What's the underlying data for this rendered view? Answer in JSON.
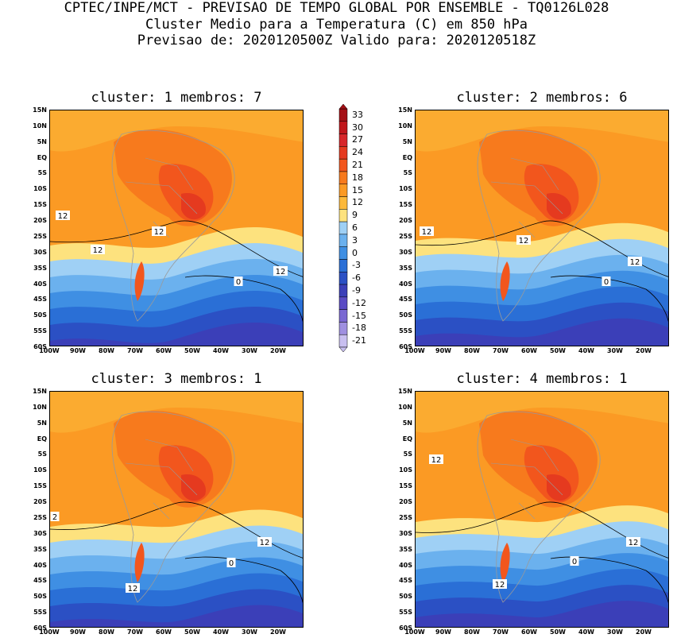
{
  "header": {
    "line1": "CPTEC/INPE/MCT - PREVISAO DE TEMPO GLOBAL POR ENSEMBLE - TQ0126L028",
    "line2": "Cluster Medio para a Temperatura (C) em 850 hPa",
    "line3": "Previsao de: 2020120500Z   Valido para: 2020120518Z"
  },
  "panels": [
    {
      "title": "cluster: 1   membros: 7",
      "labels": [
        "12",
        "12",
        "12",
        "12",
        "0"
      ]
    },
    {
      "title": "cluster: 2   membros: 6",
      "labels": [
        "12",
        "12",
        "12",
        "0"
      ]
    },
    {
      "title": "cluster: 3   membros: 1",
      "labels": [
        "2",
        "12",
        "12",
        "0"
      ]
    },
    {
      "title": "cluster: 4   membros: 1",
      "labels": [
        "12",
        "12",
        "12",
        "0"
      ]
    }
  ],
  "lat_ticks": [
    "15N",
    "10N",
    "5N",
    "EQ",
    "5S",
    "10S",
    "15S",
    "20S",
    "25S",
    "30S",
    "35S",
    "40S",
    "45S",
    "50S",
    "55S",
    "60S"
  ],
  "lon_ticks": [
    "100W",
    "90W",
    "80W",
    "70W",
    "60W",
    "50W",
    "40W",
    "30W",
    "20W"
  ],
  "colorbar": {
    "labels": [
      "33",
      "30",
      "27",
      "24",
      "21",
      "18",
      "15",
      "12",
      "9",
      "6",
      "3",
      "0",
      "-3",
      "-6",
      "-9",
      "-12",
      "-15",
      "-18",
      "-21"
    ],
    "colors": [
      "#a50f15",
      "#c0161b",
      "#d7262a",
      "#e53a1f",
      "#f2561d",
      "#f77a1d",
      "#fb9a24",
      "#fcb93a",
      "#fde27e",
      "#9fd0f5",
      "#6bb1ee",
      "#3f8fe3",
      "#2a6fd6",
      "#2b50c4",
      "#3b3fb8",
      "#5a4bc4",
      "#7a68d2",
      "#9f90e0",
      "#c8bff0"
    ]
  }
}
